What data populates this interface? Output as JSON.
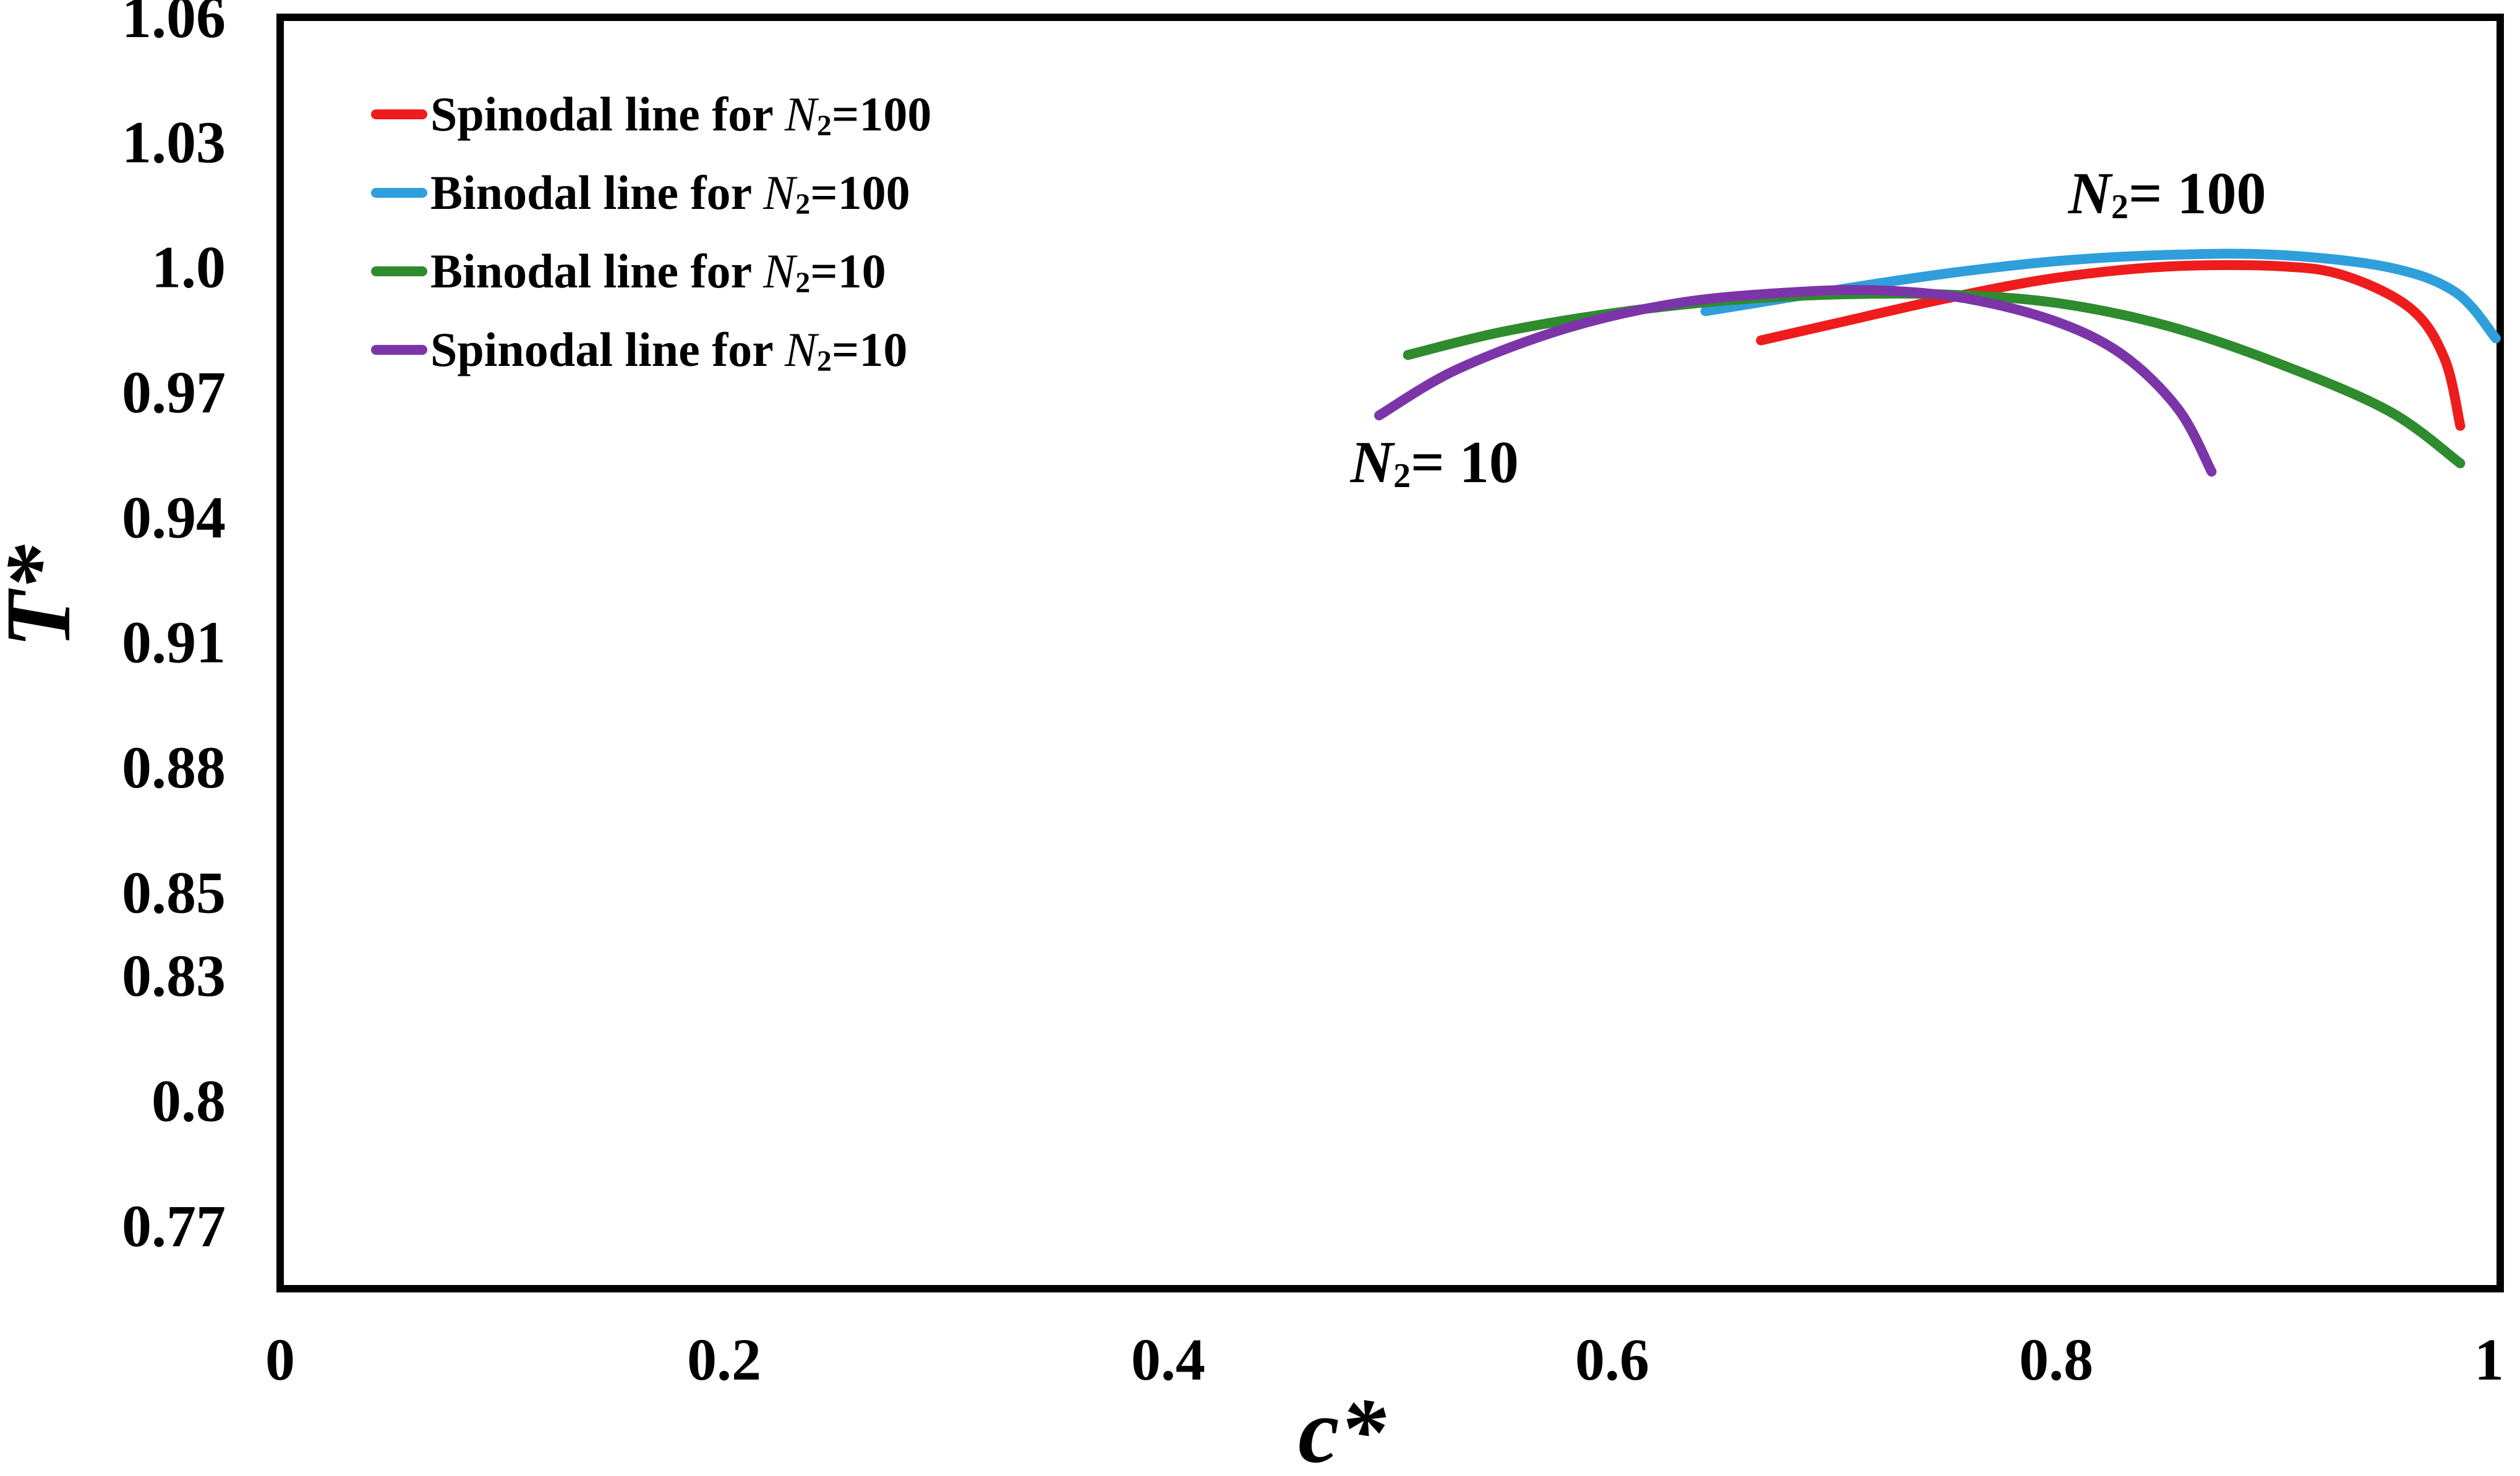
{
  "chart_data": {
    "type": "line",
    "title": "",
    "xlabel": "c*",
    "ylabel": "T*",
    "xlim": [
      0,
      1
    ],
    "ylim": [
      0.755,
      1.06
    ],
    "x_ticks": [
      0,
      0.2,
      0.4,
      0.6,
      0.8,
      1
    ],
    "x_tick_labels": [
      "0",
      "0.2",
      "0.4",
      "0.6",
      "0.8",
      "1"
    ],
    "y_ticks": [
      0.77,
      0.8,
      0.83,
      0.85,
      0.88,
      0.91,
      0.94,
      0.97,
      1.0,
      1.03,
      1.06
    ],
    "y_tick_labels": [
      "0.77",
      "0.8",
      "0.83",
      "0.85",
      "0.88",
      "0.91",
      "0.94",
      "0.97",
      "1.0",
      "1.03",
      "1.06"
    ],
    "grid": false,
    "legend_position": "top-left",
    "series": [
      {
        "name": "Spinodal line for N2=100",
        "legend_prefix": "Spinodal line for ",
        "legend_sym": "N",
        "legend_sub": "2",
        "legend_suffix": "=100",
        "color": "#ee1c1c",
        "points": [
          [
            0.667,
            0.9825
          ],
          [
            0.7,
            0.9865
          ],
          [
            0.75,
            0.9925
          ],
          [
            0.8,
            0.9975
          ],
          [
            0.85,
            1.0002
          ],
          [
            0.9,
            1.0003
          ],
          [
            0.93,
            0.998
          ],
          [
            0.96,
            0.99
          ],
          [
            0.975,
            0.978
          ],
          [
            0.982,
            0.962
          ]
        ]
      },
      {
        "name": "Binodal line for N2=100",
        "legend_prefix": "Binodal line for ",
        "legend_sym": "N",
        "legend_sub": "2",
        "legend_suffix": "=100",
        "color": "#2f9fdc",
        "points": [
          [
            0.642,
            0.9895
          ],
          [
            0.7,
            0.9945
          ],
          [
            0.75,
            0.9985
          ],
          [
            0.8,
            1.0015
          ],
          [
            0.85,
            1.003
          ],
          [
            0.9,
            1.003
          ],
          [
            0.95,
            1.0
          ],
          [
            0.98,
            0.994
          ],
          [
            0.998,
            0.983
          ]
        ]
      },
      {
        "name": "Binodal line for N2=10",
        "legend_prefix": "Binodal line for ",
        "legend_sym": "N",
        "legend_sub": "2",
        "legend_suffix": "=10",
        "color": "#2e8b2e",
        "points": [
          [
            0.508,
            0.979
          ],
          [
            0.55,
            0.9845
          ],
          [
            0.6,
            0.989
          ],
          [
            0.65,
            0.992
          ],
          [
            0.7,
            0.9935
          ],
          [
            0.75,
            0.9935
          ],
          [
            0.8,
            0.9915
          ],
          [
            0.85,
            0.986
          ],
          [
            0.9,
            0.977
          ],
          [
            0.95,
            0.9655
          ],
          [
            0.982,
            0.953
          ]
        ]
      },
      {
        "name": "Spinodal line for N2=10",
        "legend_prefix": "Spinodal line for ",
        "legend_sym": "N",
        "legend_sub": "2",
        "legend_suffix": "=10",
        "color": "#7b35a8",
        "points": [
          [
            0.495,
            0.9645
          ],
          [
            0.53,
            0.9755
          ],
          [
            0.58,
            0.9855
          ],
          [
            0.63,
            0.9915
          ],
          [
            0.68,
            0.994
          ],
          [
            0.72,
            0.9945
          ],
          [
            0.76,
            0.9925
          ],
          [
            0.8,
            0.987
          ],
          [
            0.83,
            0.979
          ],
          [
            0.855,
            0.966
          ],
          [
            0.87,
            0.951
          ]
        ]
      }
    ],
    "annotations": [
      {
        "sym": "N",
        "sub": "2",
        "text": "= 100",
        "x": 0.85,
        "y": 1.013
      },
      {
        "sym": "N",
        "sub": "2",
        "text": "= 10",
        "x": 0.52,
        "y": 0.9485
      }
    ]
  }
}
